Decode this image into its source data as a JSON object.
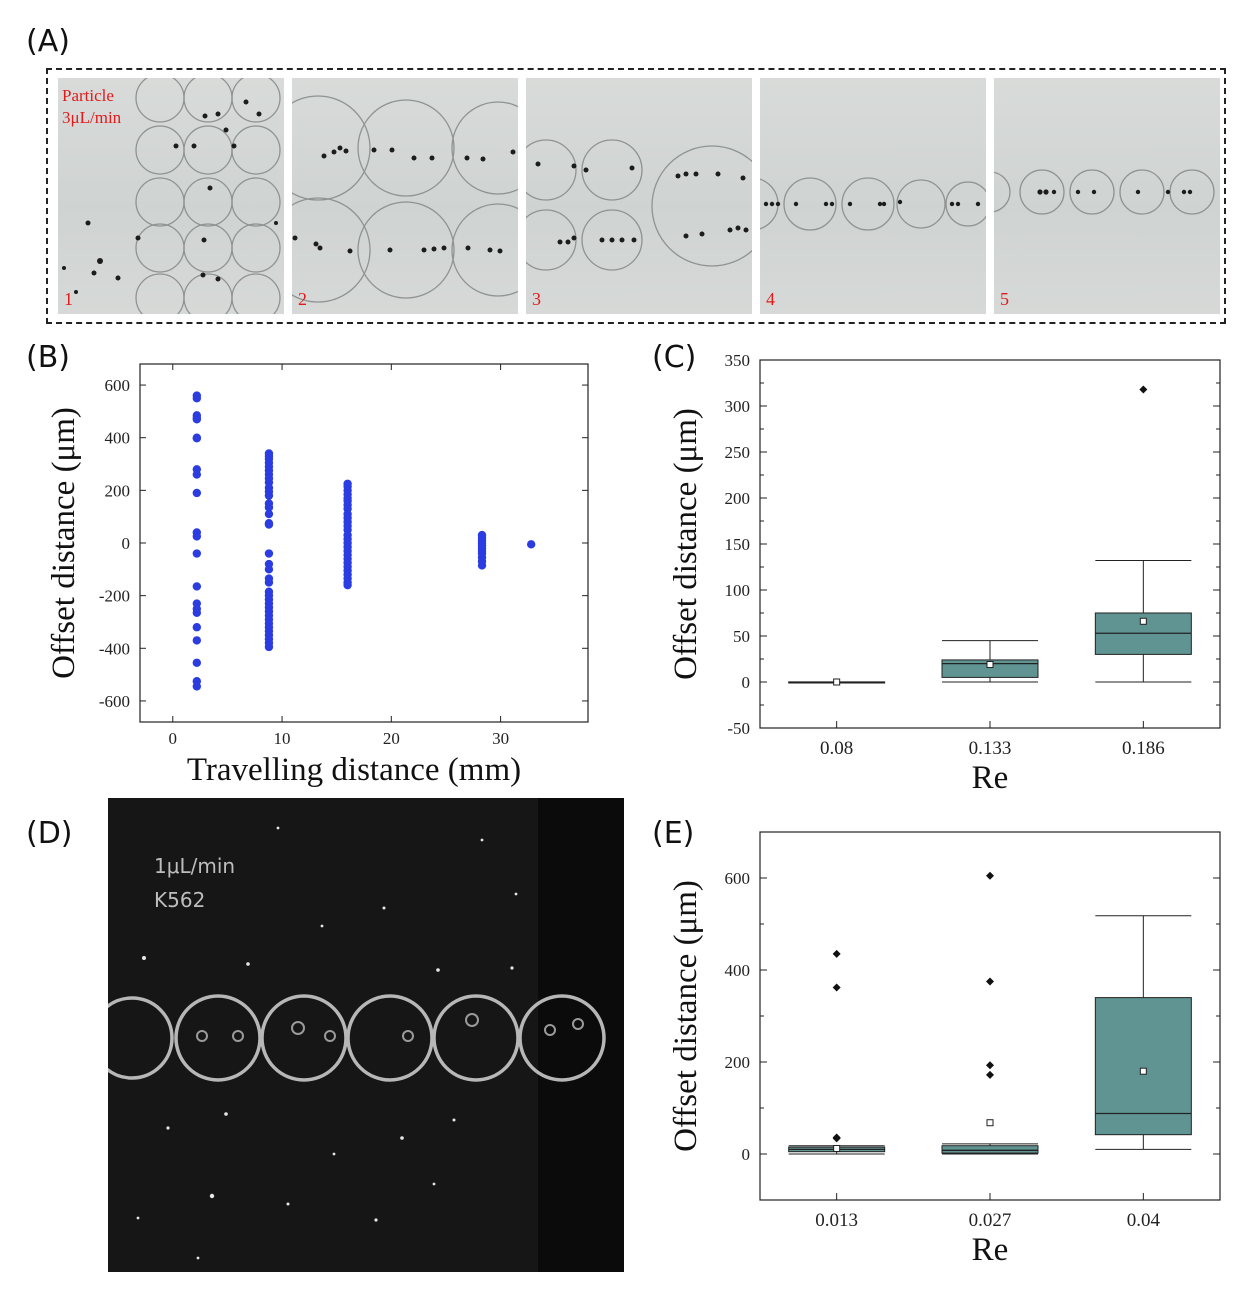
{
  "panel_labels": {
    "a": "(A)",
    "b": "(B)",
    "c": "(C)",
    "d": "(D)",
    "e": "(E)"
  },
  "panel_a": {
    "label_line1": "Particle",
    "label_line2": "3μL/min",
    "frames": [
      "1",
      "2",
      "3",
      "4",
      "5"
    ]
  },
  "panel_d": {
    "label_line1": "1μL/min",
    "label_line2": "K562"
  },
  "colors": {
    "scatter": "#2b3de0",
    "box_fill": "#5f9492",
    "particle_label": "#e01b1b"
  },
  "chart_data": [
    {
      "panel": "B",
      "type": "scatter",
      "xlabel": "Travelling distance (mm)",
      "ylabel": "Offset distance (μm)",
      "xlim": [
        -3,
        38
      ],
      "ylim": [
        -680,
        680
      ],
      "xticks": [
        0,
        10,
        20,
        30
      ],
      "yticks": [
        -600,
        -400,
        -200,
        0,
        200,
        400,
        600
      ],
      "grid": false,
      "series": [
        {
          "x": 2.2,
          "y": [
            560,
            550,
            485,
            475,
            470,
            400,
            398,
            280,
            260,
            190,
            40,
            25,
            -40,
            -165,
            -230,
            -250,
            -265,
            -320,
            -370,
            -455,
            -525,
            -545
          ]
        },
        {
          "x": 8.8,
          "y": [
            340,
            330,
            320,
            305,
            290,
            275,
            260,
            245,
            230,
            210,
            195,
            180,
            150,
            135,
            110,
            75,
            70,
            -40,
            -80,
            -100,
            -135,
            -150,
            -185,
            -200,
            -215,
            -230,
            -245,
            -260,
            -275,
            -290,
            -305,
            -320,
            -335,
            -350,
            -365,
            -380,
            -395
          ]
        },
        {
          "x": 16.0,
          "y": [
            225,
            215,
            200,
            185,
            170,
            160,
            145,
            130,
            110,
            95,
            80,
            65,
            50,
            30,
            15,
            0,
            -15,
            -30,
            -45,
            -60,
            -75,
            -90,
            -105,
            -120,
            -135,
            -150,
            -160
          ]
        },
        {
          "x": 28.3,
          "y": [
            30,
            20,
            10,
            0,
            -10,
            -20,
            -30,
            -40,
            -55,
            -70,
            -85
          ]
        },
        {
          "x": 32.8,
          "y": [
            -5
          ]
        }
      ]
    },
    {
      "panel": "C",
      "type": "box",
      "xlabel": "Re",
      "ylabel": "Offset distance (μm)",
      "ylim": [
        -50,
        350
      ],
      "yticks": [
        -50,
        0,
        50,
        100,
        150,
        200,
        250,
        300,
        350
      ],
      "categories": [
        "0.08",
        "0.133",
        "0.186"
      ],
      "boxes": [
        {
          "whisker_low": 0,
          "q1": 0,
          "median": 0,
          "q3": 0,
          "whisker_high": 0,
          "mean": 0,
          "outliers": []
        },
        {
          "whisker_low": 0,
          "q1": 5,
          "median": 20,
          "q3": 24,
          "whisker_high": 45,
          "mean": 19,
          "outliers": []
        },
        {
          "whisker_low": 0,
          "q1": 30,
          "median": 53,
          "q3": 75,
          "whisker_high": 132,
          "mean": 66,
          "outliers": [
            318
          ]
        }
      ]
    },
    {
      "panel": "E",
      "type": "box",
      "xlabel": "Re",
      "ylabel": "Offset distance (μm)",
      "ylim": [
        -100,
        700
      ],
      "yticks": [
        0,
        200,
        400,
        600
      ],
      "categories": [
        "0.013",
        "0.027",
        "0.04"
      ],
      "boxes": [
        {
          "whisker_low": 0,
          "q1": 5,
          "median": 10,
          "q3": 15,
          "whisker_high": 18,
          "mean": 12,
          "outliers": [
            435,
            362,
            36,
            34
          ]
        },
        {
          "whisker_low": 0,
          "q1": 2,
          "median": 8,
          "q3": 18,
          "whisker_high": 22,
          "mean": 68,
          "outliers": [
            605,
            375,
            193,
            172
          ]
        },
        {
          "whisker_low": 10,
          "q1": 42,
          "median": 88,
          "q3": 340,
          "whisker_high": 518,
          "mean": 180,
          "outliers": []
        }
      ]
    }
  ]
}
